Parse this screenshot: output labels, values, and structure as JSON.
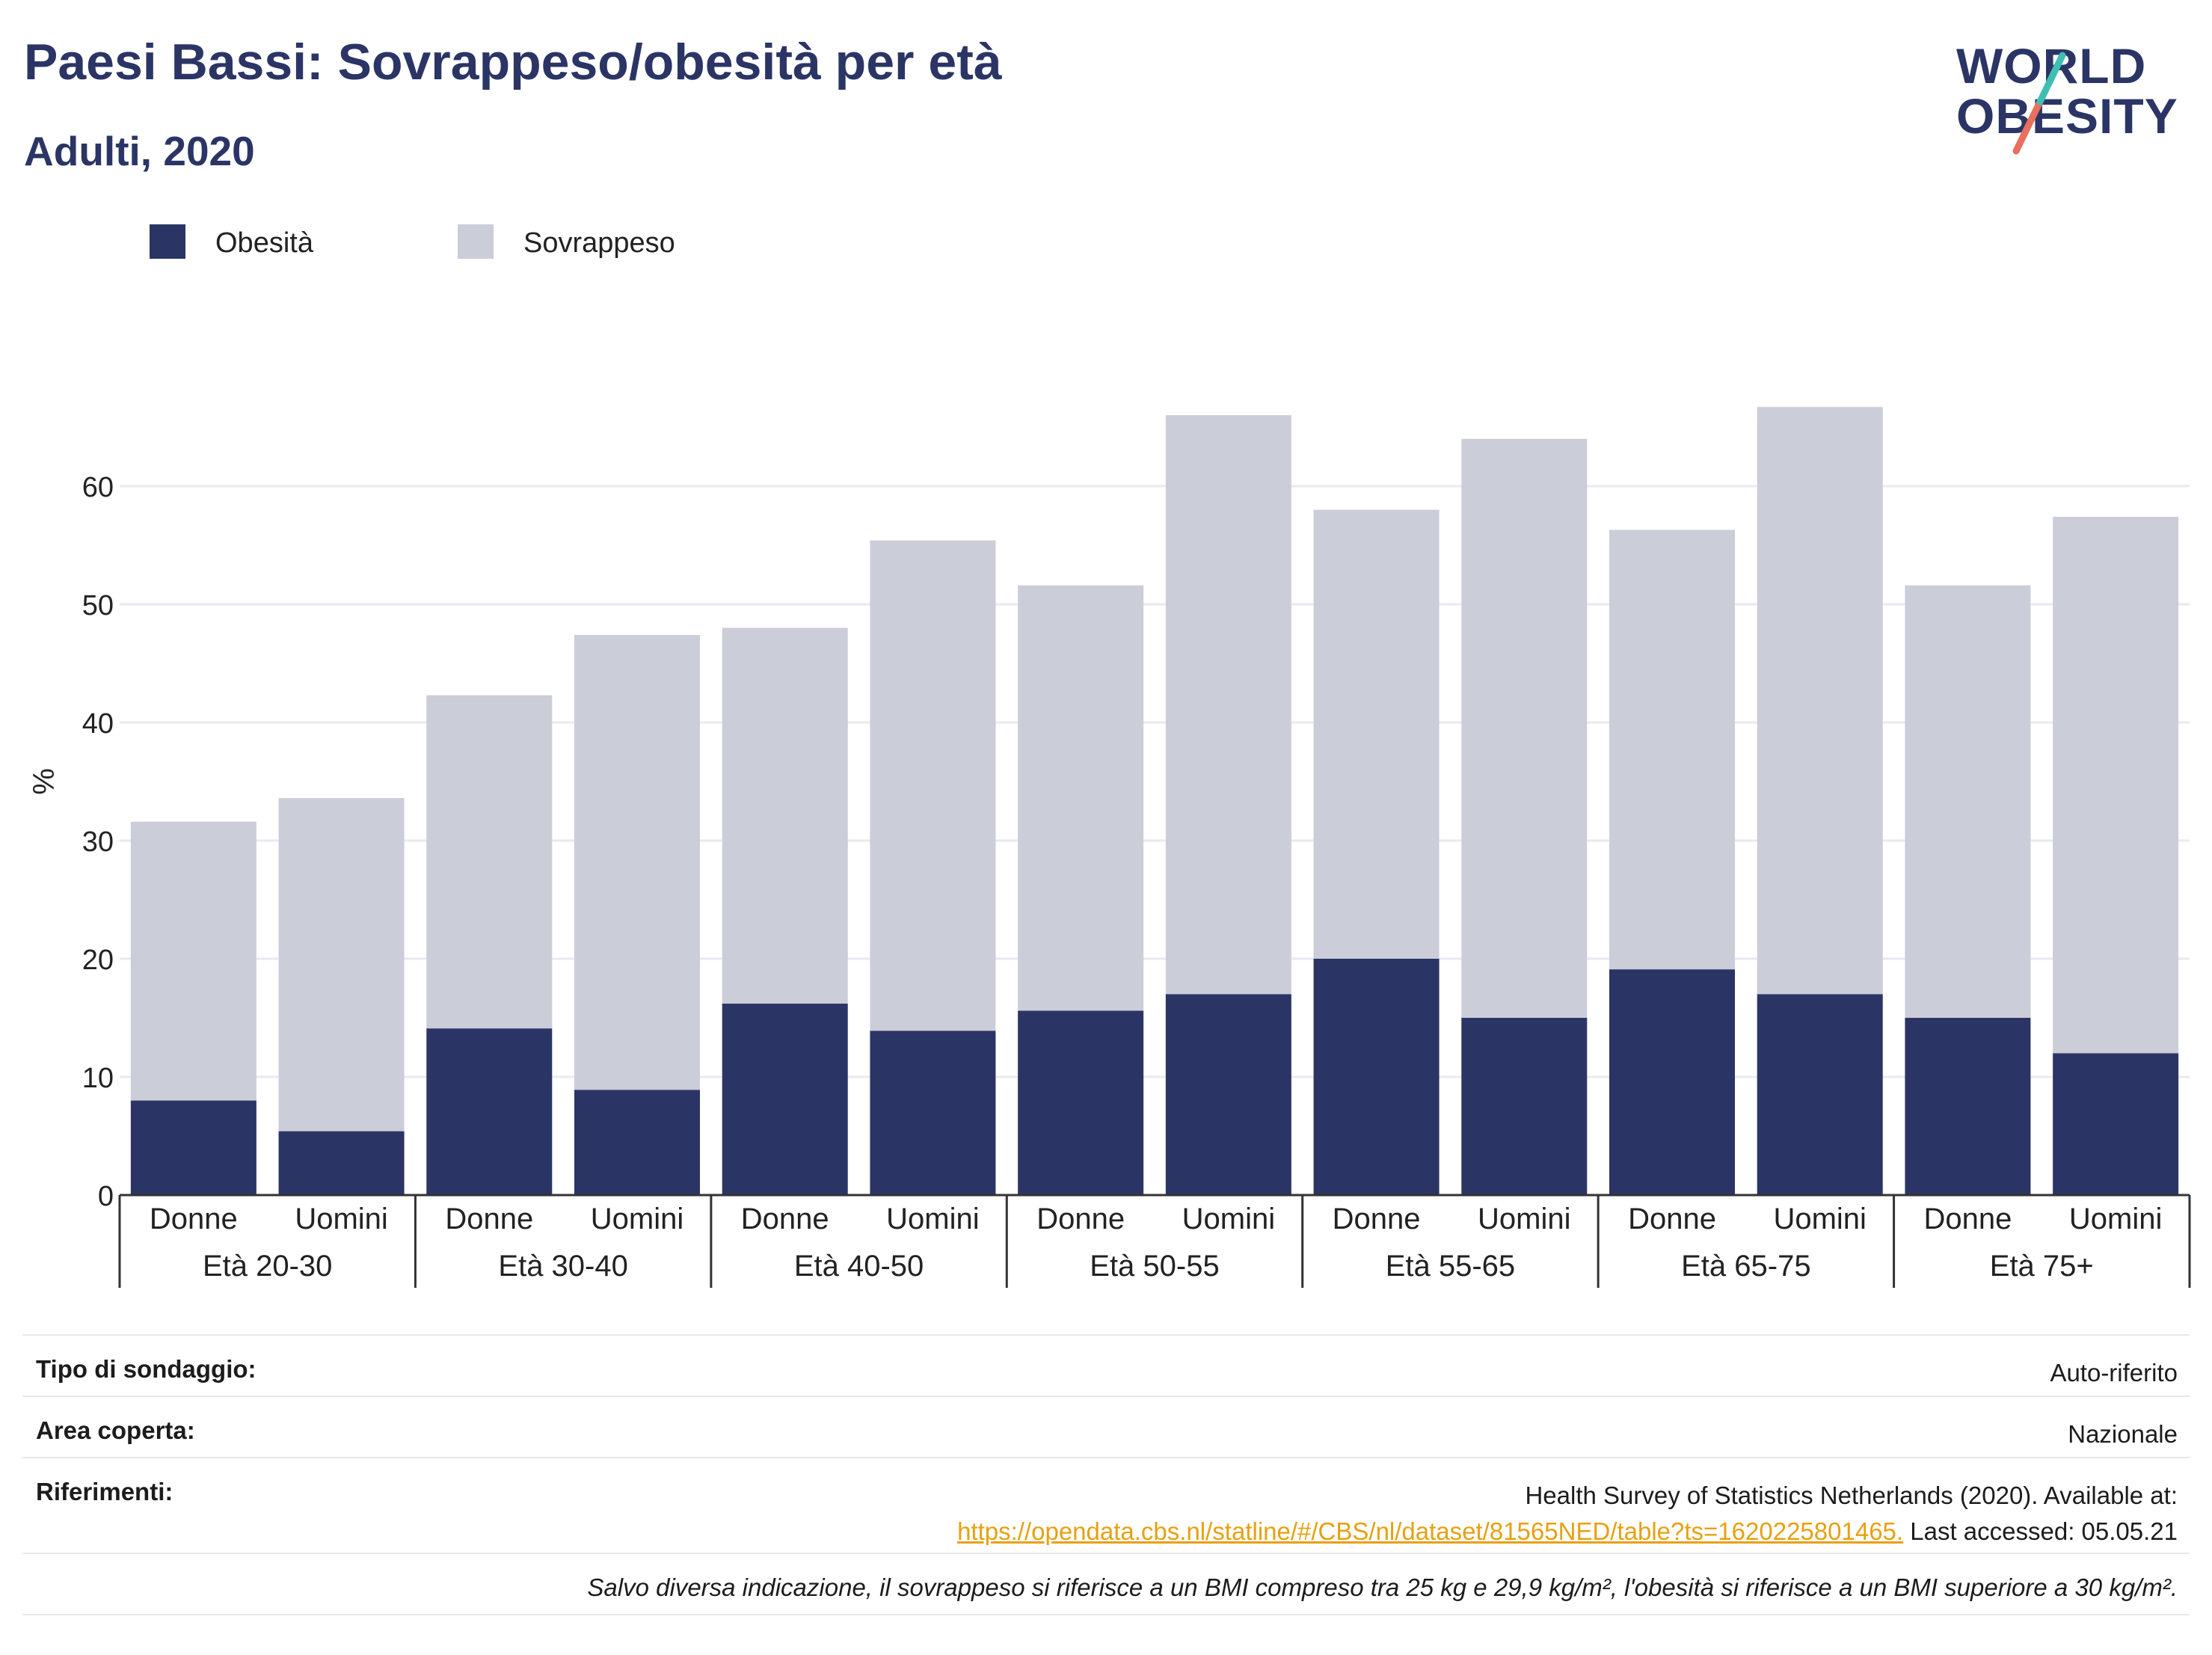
{
  "header": {
    "title": "Paesi Bassi: Sovrappeso/obesità per età",
    "subtitle": "Adulti, 2020"
  },
  "logo": {
    "line1": "WORLD",
    "line2": "OBESITY"
  },
  "colors": {
    "obesity": "#2b3565",
    "overweight": "#cbcdd9",
    "accent_teal": "#3fbfb4",
    "accent_coral": "#e8705c",
    "link": "#e8a010"
  },
  "chart_data": {
    "type": "bar",
    "stacked": true,
    "ylabel": "%",
    "ylim": [
      0,
      70
    ],
    "yticks": [
      0,
      10,
      20,
      30,
      40,
      50,
      60
    ],
    "grid": true,
    "legend_position": "top-left",
    "groups": [
      "Età 20-30",
      "Età 30-40",
      "Età 40-50",
      "Età 50-55",
      "Età 55-65",
      "Età 65-75",
      "Età 75+"
    ],
    "subcategories": [
      "Donne",
      "Uomini"
    ],
    "series": [
      {
        "name": "Obesità",
        "values": [
          8.0,
          5.4,
          14.1,
          8.9,
          16.2,
          13.9,
          15.6,
          17.0,
          20.0,
          15.0,
          19.1,
          17.0,
          15.0,
          12.0
        ]
      },
      {
        "name": "Sovrappeso",
        "values": [
          23.6,
          28.2,
          28.2,
          38.5,
          31.8,
          41.5,
          36.0,
          49.0,
          38.0,
          49.0,
          37.2,
          49.7,
          36.6,
          45.4
        ]
      }
    ]
  },
  "info": {
    "survey_label": "Tipo di sondaggio:",
    "survey_value": "Auto-riferito",
    "area_label": "Area coperta:",
    "area_value": "Nazionale",
    "refs_label": "Riferimenti:",
    "refs_line1": "Health Survey of Statistics Netherlands (2020). Available at:",
    "refs_link": "https://opendata.cbs.nl/statline/#/CBS/nl/dataset/81565NED/table?ts=1620225801465.",
    "refs_tail": " Last accessed: 05.05.21",
    "note": "Salvo diversa indicazione, il sovrappeso si riferisce a un BMI compreso tra 25 kg e 29,9 kg/m², l'obesità si riferisce a un BMI superiore a 30 kg/m²."
  }
}
